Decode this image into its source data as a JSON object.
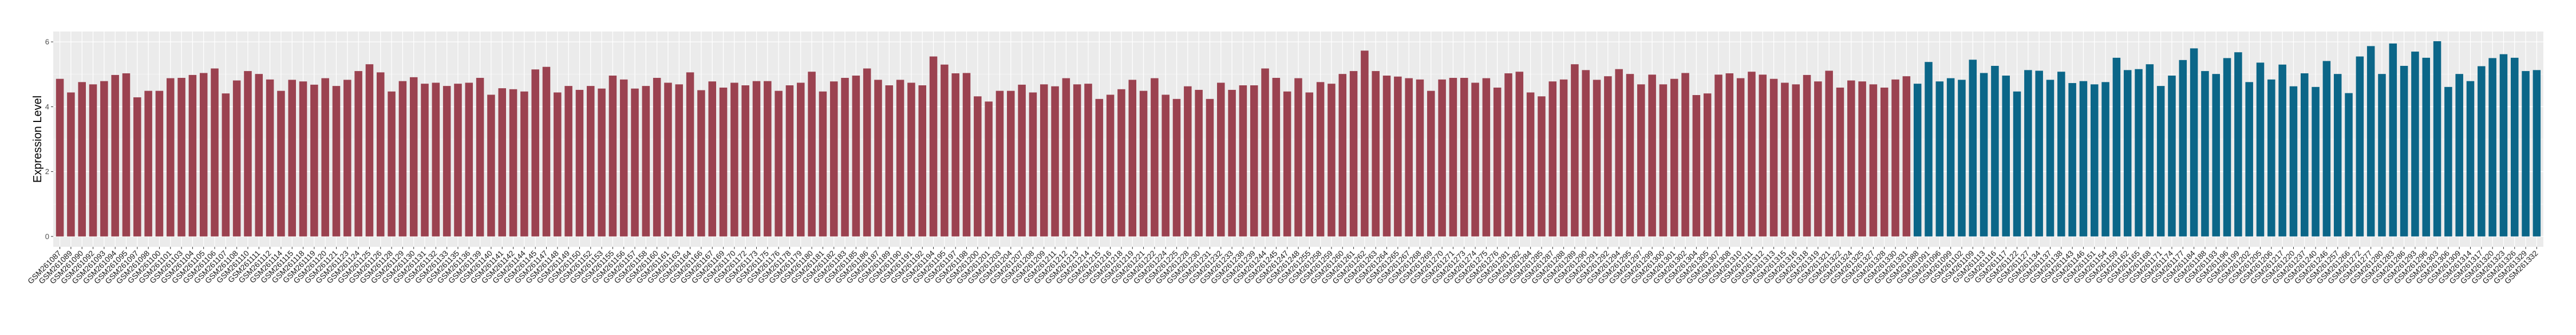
{
  "chart_data": {
    "type": "bar",
    "title": "",
    "xlabel": "",
    "ylabel": "Expression Level",
    "ylim": [
      -0.32,
      6.32
    ],
    "yticks": [
      0,
      2,
      4,
      6
    ],
    "grid": true,
    "legend": "none",
    "colors": {
      "group1": "#9B4250",
      "group2": "#0B6688",
      "panel": "#EBEBEB",
      "grid": "#FFFFFF"
    },
    "categories": [
      "GSM261087",
      "GSM261089",
      "GSM261090",
      "GSM261092",
      "GSM261093",
      "GSM261094",
      "GSM261095",
      "GSM261097",
      "GSM261098",
      "GSM261100",
      "GSM261101",
      "GSM261103",
      "GSM261104",
      "GSM261105",
      "GSM261106",
      "GSM261107",
      "GSM261108",
      "GSM261110",
      "GSM261111",
      "GSM261112",
      "GSM261114",
      "GSM261115",
      "GSM261118",
      "GSM261119",
      "GSM261120",
      "GSM261121",
      "GSM261123",
      "GSM261124",
      "GSM261125",
      "GSM261126",
      "GSM261128",
      "GSM261129",
      "GSM261130",
      "GSM261131",
      "GSM261132",
      "GSM261133",
      "GSM261135",
      "GSM261136",
      "GSM261139",
      "GSM261140",
      "GSM261141",
      "GSM261142",
      "GSM261144",
      "GSM261145",
      "GSM261147",
      "GSM261148",
      "GSM261149",
      "GSM261150",
      "GSM261152",
      "GSM261153",
      "GSM261155",
      "GSM261156",
      "GSM261157",
      "GSM261158",
      "GSM261160",
      "GSM261161",
      "GSM261163",
      "GSM261164",
      "GSM261166",
      "GSM261167",
      "GSM261169",
      "GSM261170",
      "GSM261172",
      "GSM261173",
      "GSM261175",
      "GSM261176",
      "GSM261178",
      "GSM261179",
      "GSM261180",
      "GSM261181",
      "GSM261182",
      "GSM261183",
      "GSM261185",
      "GSM261186",
      "GSM261187",
      "GSM261189",
      "GSM261190",
      "GSM261191",
      "GSM261192",
      "GSM261194",
      "GSM261195",
      "GSM261197",
      "GSM261198",
      "GSM261200",
      "GSM261201",
      "GSM261203",
      "GSM261204",
      "GSM261207",
      "GSM261208",
      "GSM261209",
      "GSM261211",
      "GSM261212",
      "GSM261213",
      "GSM261214",
      "GSM261215",
      "GSM261216",
      "GSM261218",
      "GSM261219",
      "GSM261221",
      "GSM261222",
      "GSM261224",
      "GSM261225",
      "GSM261228",
      "GSM261230",
      "GSM261231",
      "GSM261232",
      "GSM261233",
      "GSM261238",
      "GSM261239",
      "GSM261244",
      "GSM261245",
      "GSM261247",
      "GSM261248",
      "GSM261255",
      "GSM261258",
      "GSM261259",
      "GSM261260",
      "GSM261261",
      "GSM261262",
      "GSM261263",
      "GSM261264",
      "GSM261265",
      "GSM261267",
      "GSM261268",
      "GSM261269",
      "GSM261270",
      "GSM261271",
      "GSM261273",
      "GSM261274",
      "GSM261275",
      "GSM261276",
      "GSM261281",
      "GSM261282",
      "GSM261284",
      "GSM261285",
      "GSM261287",
      "GSM261288",
      "GSM261289",
      "GSM261290",
      "GSM261291",
      "GSM261292",
      "GSM261294",
      "GSM261295",
      "GSM261297",
      "GSM261299",
      "GSM261300",
      "GSM261301",
      "GSM261302",
      "GSM261304",
      "GSM261305",
      "GSM261307",
      "GSM261308",
      "GSM261310",
      "GSM261311",
      "GSM261312",
      "GSM261313",
      "GSM261315",
      "GSM261316",
      "GSM261318",
      "GSM261319",
      "GSM261321",
      "GSM261322",
      "GSM261324",
      "GSM261325",
      "GSM261327",
      "GSM261328",
      "GSM261330",
      "GSM261331",
      "GSM261088",
      "GSM261091",
      "GSM261096",
      "GSM261099",
      "GSM261102",
      "GSM261109",
      "GSM261113",
      "GSM261116",
      "GSM261117",
      "GSM261122",
      "GSM261127",
      "GSM261134",
      "GSM261137",
      "GSM261138",
      "GSM261143",
      "GSM261146",
      "GSM261151",
      "GSM261154",
      "GSM261159",
      "GSM261162",
      "GSM261165",
      "GSM261168",
      "GSM261171",
      "GSM261174",
      "GSM261177",
      "GSM261184",
      "GSM261188",
      "GSM261193",
      "GSM261196",
      "GSM261199",
      "GSM261202",
      "GSM261205",
      "GSM261206",
      "GSM261217",
      "GSM261220",
      "GSM261237",
      "GSM261240",
      "GSM261246",
      "GSM261257",
      "GSM261266",
      "GSM261272",
      "GSM261277",
      "GSM261280",
      "GSM261283",
      "GSM261286",
      "GSM261293",
      "GSM261296",
      "GSM261303",
      "GSM261306",
      "GSM261309",
      "GSM261314",
      "GSM261317",
      "GSM261320",
      "GSM261323",
      "GSM261326",
      "GSM261329",
      "GSM261332"
    ],
    "values": [
      4.86,
      4.44,
      4.76,
      4.69,
      4.79,
      4.98,
      5.03,
      4.29,
      4.49,
      4.49,
      4.88,
      4.89,
      4.98,
      5.04,
      5.18,
      4.41,
      4.81,
      5.1,
      5.01,
      4.84,
      4.49,
      4.83,
      4.78,
      4.68,
      4.88,
      4.64,
      4.83,
      5.1,
      5.31,
      5.06,
      4.47,
      4.79,
      4.91,
      4.71,
      4.74,
      4.64,
      4.71,
      4.74,
      4.89,
      4.37,
      4.57,
      4.54,
      4.47,
      5.15,
      5.23,
      4.44,
      4.64,
      4.52,
      4.64,
      4.56,
      4.96,
      4.84,
      4.56,
      4.64,
      4.89,
      4.74,
      4.69,
      5.06,
      4.51,
      4.78,
      4.59,
      4.74,
      4.66,
      4.79,
      4.79,
      4.49,
      4.66,
      4.74,
      5.08,
      4.47,
      4.78,
      4.89,
      4.96,
      5.18,
      4.83,
      4.66,
      4.83,
      4.74,
      4.66,
      5.55,
      5.3,
      5.03,
      5.04,
      4.32,
      4.16,
      4.49,
      4.49,
      4.68,
      4.44,
      4.69,
      4.63,
      4.88,
      4.69,
      4.71,
      4.24,
      4.37,
      4.54,
      4.83,
      4.49,
      4.88,
      4.37,
      4.24,
      4.63,
      4.52,
      4.24,
      4.74,
      4.52,
      4.66,
      4.66,
      5.18,
      4.89,
      4.47,
      4.88,
      4.44,
      4.76,
      4.71,
      5.01,
      5.1,
      5.73,
      5.1,
      4.96,
      4.93,
      4.88,
      4.84,
      4.49,
      4.84,
      4.89,
      4.89,
      4.74,
      4.88,
      4.59,
      5.03,
      5.08,
      4.44,
      4.32,
      4.78,
      4.84,
      5.31,
      5.13,
      4.83,
      4.94,
      5.16,
      5.01,
      4.69,
      4.99,
      4.69,
      4.86,
      5.04,
      4.36,
      4.41,
      4.99,
      5.03,
      4.88,
      5.08,
      4.99,
      4.86,
      4.74,
      4.69,
      4.98,
      4.78,
      5.11,
      4.59,
      4.81,
      4.78,
      4.69,
      4.59,
      4.84,
      4.94,
      4.71,
      5.38,
      4.78,
      4.88,
      4.83,
      5.45,
      5.04,
      5.26,
      4.96,
      4.47,
      5.13,
      5.11,
      4.83,
      5.08,
      4.73,
      4.79,
      4.69,
      4.76,
      5.51,
      5.13,
      5.16,
      5.31,
      4.64,
      4.96,
      5.44,
      5.8,
      5.1,
      5.01,
      5.5,
      5.68,
      4.76,
      5.36,
      4.84,
      5.3,
      4.63,
      5.03,
      4.61,
      5.41,
      5.01,
      4.42,
      5.55,
      5.87,
      5.01,
      5.95,
      5.26,
      5.7,
      5.51,
      6.02,
      4.61,
      5.01,
      4.79,
      5.25,
      5.5,
      5.62,
      5.51,
      5.1,
      5.13
    ],
    "group_counts": {
      "group1": 168,
      "group2": 57
    }
  }
}
